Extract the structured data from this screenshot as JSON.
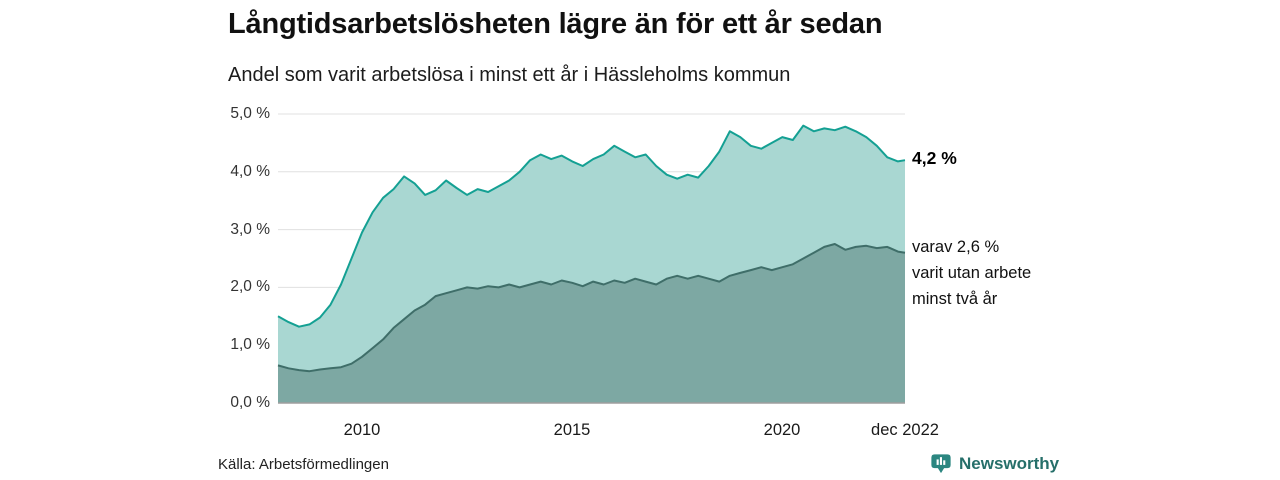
{
  "header": {
    "title": "Långtidsarbetslösheten lägre än för ett år sedan",
    "subtitle": "Andel som varit arbetslösa i minst ett år i Hässleholms kommun"
  },
  "annotations": {
    "latest_total": "4,2 %",
    "two_year_lines": [
      "varav 2,6 %",
      "varit utan arbete",
      "minst två år"
    ]
  },
  "footer": {
    "source": "Källa: Arbetsförmedlingen",
    "brand": "Newsworthy",
    "brand_color": "#2b8680",
    "brand_text_color": "#266f6a"
  },
  "chart_data": {
    "type": "area",
    "title": "Långtidsarbetslösheten lägre än för ett år sedan",
    "subtitle": "Andel som varit arbetslösa i minst ett år i Hässleholms kommun",
    "xlabel": "",
    "ylabel": "",
    "xlim": [
      2008,
      2022.92
    ],
    "ylim": [
      0,
      5
    ],
    "grid": "horizontal",
    "legend": "none",
    "y_ticks": [
      {
        "v": 5,
        "label": "5,0 %"
      },
      {
        "v": 4,
        "label": "4,0 %"
      },
      {
        "v": 3,
        "label": "3,0 %"
      },
      {
        "v": 2,
        "label": "2,0 %"
      },
      {
        "v": 1,
        "label": "1,0 %"
      },
      {
        "v": 0,
        "label": "0,0 %"
      }
    ],
    "x_ticks": [
      {
        "v": 2010,
        "label": "2010"
      },
      {
        "v": 2015,
        "label": "2015"
      },
      {
        "v": 2020,
        "label": "2020"
      },
      {
        "v": 2022.92,
        "label": "dec 2022"
      }
    ],
    "x": [
      2008,
      2008.25,
      2008.5,
      2008.75,
      2009,
      2009.25,
      2009.5,
      2009.75,
      2010,
      2010.25,
      2010.5,
      2010.75,
      2011,
      2011.25,
      2011.5,
      2011.75,
      2012,
      2012.25,
      2012.5,
      2012.75,
      2013,
      2013.25,
      2013.5,
      2013.75,
      2014,
      2014.25,
      2014.5,
      2014.75,
      2015,
      2015.25,
      2015.5,
      2015.75,
      2016,
      2016.25,
      2016.5,
      2016.75,
      2017,
      2017.25,
      2017.5,
      2017.75,
      2018,
      2018.25,
      2018.5,
      2018.75,
      2019,
      2019.25,
      2019.5,
      2019.75,
      2020,
      2020.25,
      2020.5,
      2020.75,
      2021,
      2021.25,
      2021.5,
      2021.75,
      2022,
      2022.25,
      2022.5,
      2022.75,
      2022.92
    ],
    "series": [
      {
        "name": "Arbetslösa minst ett år",
        "latest": "4,2 %",
        "fill": "#a9d7d2",
        "stroke": "#14a093",
        "values": [
          1.5,
          1.4,
          1.32,
          1.36,
          1.48,
          1.7,
          2.05,
          2.5,
          2.95,
          3.3,
          3.55,
          3.7,
          3.92,
          3.8,
          3.6,
          3.68,
          3.85,
          3.72,
          3.6,
          3.7,
          3.65,
          3.75,
          3.85,
          4.0,
          4.2,
          4.3,
          4.22,
          4.28,
          4.18,
          4.1,
          4.22,
          4.3,
          4.45,
          4.35,
          4.25,
          4.3,
          4.1,
          3.95,
          3.88,
          3.95,
          3.9,
          4.1,
          4.35,
          4.7,
          4.6,
          4.45,
          4.4,
          4.5,
          4.6,
          4.55,
          4.8,
          4.7,
          4.75,
          4.72,
          4.78,
          4.7,
          4.6,
          4.45,
          4.25,
          4.18,
          4.2
        ]
      },
      {
        "name": "Utan arbete minst två år",
        "latest": "2,6 %",
        "fill": "#7da8a3",
        "stroke": "#3f6e69",
        "values": [
          0.65,
          0.6,
          0.57,
          0.55,
          0.58,
          0.6,
          0.62,
          0.68,
          0.8,
          0.95,
          1.1,
          1.3,
          1.45,
          1.6,
          1.7,
          1.85,
          1.9,
          1.95,
          2.0,
          1.98,
          2.02,
          2.0,
          2.05,
          2.0,
          2.05,
          2.1,
          2.05,
          2.12,
          2.08,
          2.02,
          2.1,
          2.05,
          2.12,
          2.08,
          2.15,
          2.1,
          2.05,
          2.15,
          2.2,
          2.15,
          2.2,
          2.15,
          2.1,
          2.2,
          2.25,
          2.3,
          2.35,
          2.3,
          2.35,
          2.4,
          2.5,
          2.6,
          2.7,
          2.75,
          2.65,
          2.7,
          2.72,
          2.68,
          2.7,
          2.62,
          2.6
        ]
      }
    ]
  }
}
